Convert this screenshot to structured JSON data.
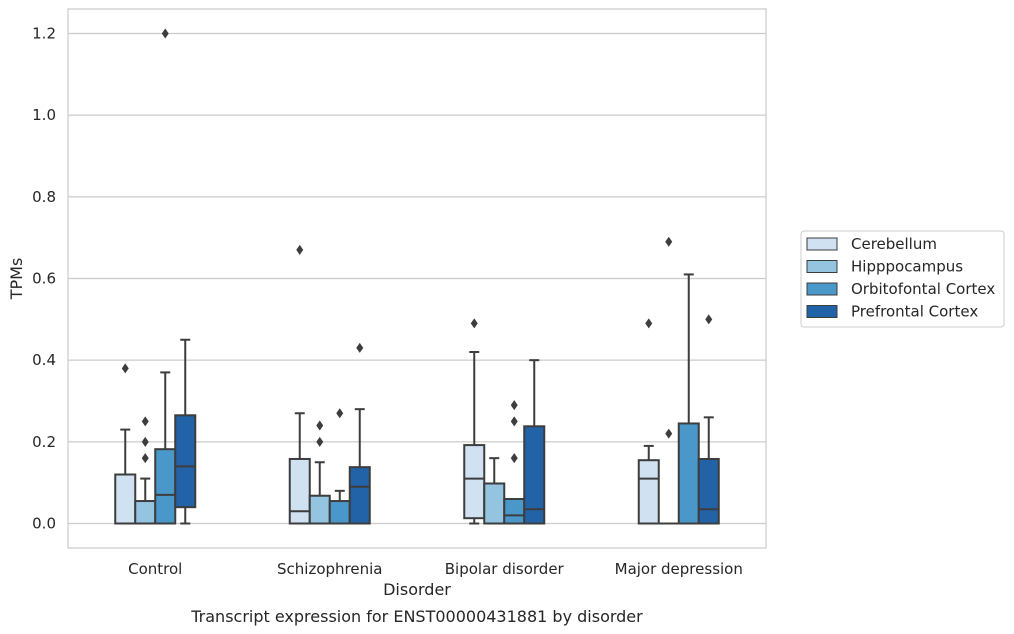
{
  "chart_data": {
    "type": "box",
    "caption": "Transcript expression for ENST00000431881 by disorder",
    "xlabel": "Disorder",
    "ylabel": "TPMs",
    "ylim": [
      -0.06,
      1.26
    ],
    "yticks": [
      0.0,
      0.2,
      0.4,
      0.6,
      0.8,
      1.0,
      1.2
    ],
    "grid": true,
    "legend_position": "right",
    "categories": [
      "Control",
      "Schizophrenia",
      "Bipolar disorder",
      "Major depression"
    ],
    "series": [
      {
        "name": "Cerebellum",
        "color": "#d0e1f2",
        "boxes": [
          {
            "min": 0.0,
            "q1": 0.0,
            "median": 0.0,
            "q3": 0.12,
            "max": 0.23,
            "outliers": [
              0.38
            ]
          },
          {
            "min": 0.0,
            "q1": 0.0,
            "median": 0.03,
            "q3": 0.158,
            "max": 0.27,
            "outliers": [
              0.67
            ]
          },
          {
            "min": 0.0,
            "q1": 0.013,
            "median": 0.11,
            "q3": 0.192,
            "max": 0.42,
            "outliers": [
              0.49
            ]
          },
          {
            "min": 0.0,
            "q1": 0.0,
            "median": 0.11,
            "q3": 0.155,
            "max": 0.19,
            "outliers": [
              0.49
            ]
          }
        ]
      },
      {
        "name": "Hipppocampus",
        "color": "#94c4df",
        "boxes": [
          {
            "min": 0.0,
            "q1": 0.0,
            "median": 0.0,
            "q3": 0.055,
            "max": 0.11,
            "outliers": [
              0.16,
              0.2,
              0.25
            ]
          },
          {
            "min": 0.0,
            "q1": 0.0,
            "median": 0.0,
            "q3": 0.068,
            "max": 0.15,
            "outliers": [
              0.2,
              0.24
            ]
          },
          {
            "min": 0.0,
            "q1": 0.0,
            "median": 0.0,
            "q3": 0.098,
            "max": 0.16,
            "outliers": []
          },
          {
            "min": 0.0,
            "q1": 0.0,
            "median": 0.0,
            "q3": 0.0,
            "max": 0.0,
            "outliers": [
              0.22,
              0.69
            ]
          }
        ]
      },
      {
        "name": "Orbitofontal Cortex",
        "color": "#4a98c9",
        "boxes": [
          {
            "min": 0.0,
            "q1": 0.0,
            "median": 0.07,
            "q3": 0.182,
            "max": 0.37,
            "outliers": [
              1.2
            ]
          },
          {
            "min": 0.0,
            "q1": 0.0,
            "median": 0.0,
            "q3": 0.055,
            "max": 0.08,
            "outliers": [
              0.27
            ]
          },
          {
            "min": 0.0,
            "q1": 0.0,
            "median": 0.02,
            "q3": 0.06,
            "max": 0.06,
            "outliers": [
              0.16,
              0.25,
              0.29
            ]
          },
          {
            "min": 0.0,
            "q1": 0.0,
            "median": 0.0,
            "q3": 0.245,
            "max": 0.61,
            "outliers": []
          }
        ]
      },
      {
        "name": "Prefrontal Cortex",
        "color": "#2262a6",
        "boxes": [
          {
            "min": 0.0,
            "q1": 0.04,
            "median": 0.14,
            "q3": 0.265,
            "max": 0.45,
            "outliers": []
          },
          {
            "min": 0.0,
            "q1": 0.0,
            "median": 0.09,
            "q3": 0.138,
            "max": 0.28,
            "outliers": [
              0.43
            ]
          },
          {
            "min": 0.0,
            "q1": 0.0,
            "median": 0.035,
            "q3": 0.238,
            "max": 0.4,
            "outliers": []
          },
          {
            "min": 0.0,
            "q1": 0.0,
            "median": 0.035,
            "q3": 0.158,
            "max": 0.26,
            "outliers": [
              0.5
            ]
          }
        ]
      }
    ]
  }
}
